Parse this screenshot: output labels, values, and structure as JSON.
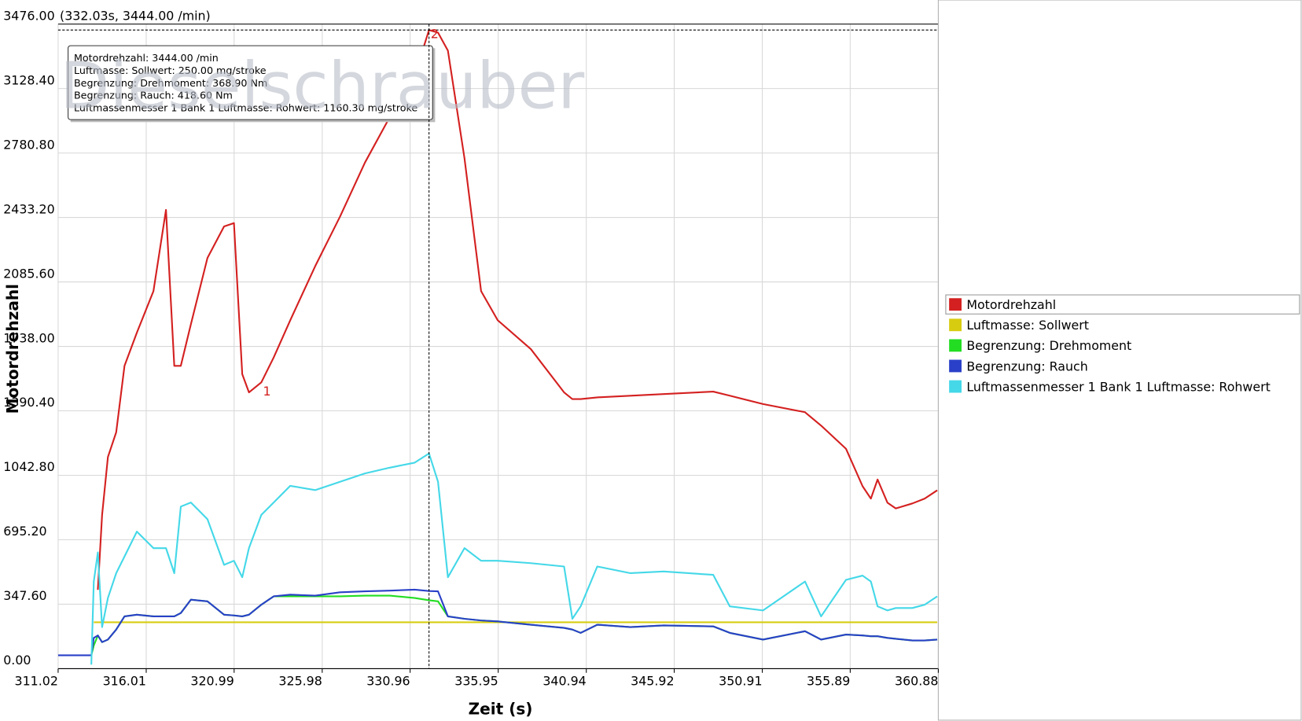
{
  "chart_data": {
    "type": "line",
    "xlabel": "Zeit (s)",
    "ylabel": "Motordrehzahl",
    "watermark": "Dieselschrauber",
    "xlim": [
      311.02,
      360.88
    ],
    "ylim": [
      0,
      3476
    ],
    "xticks": [
      311.02,
      316.01,
      320.99,
      325.98,
      330.96,
      335.95,
      340.94,
      345.92,
      350.91,
      355.89,
      360.88
    ],
    "yticks": [
      {
        "value": 0,
        "label": "0.00"
      },
      {
        "value": 347.6,
        "label": "347.60"
      },
      {
        "value": 695.2,
        "label": "695.20"
      },
      {
        "value": 1042.8,
        "label": "1042.80"
      },
      {
        "value": 1390.4,
        "label": "1390.40"
      },
      {
        "value": 1738,
        "label": "1738.00"
      },
      {
        "value": 2085.6,
        "label": "2085.60"
      },
      {
        "value": 2433.2,
        "label": "2433.20"
      },
      {
        "value": 2780.8,
        "label": "2780.80"
      },
      {
        "value": 3128.4,
        "label": "3128.40"
      },
      {
        "value": 3476,
        "label": "3476.00"
      }
    ],
    "grid": true,
    "legend": "right",
    "cursor": {
      "x": 332.03,
      "y": 3444,
      "readout": "(332.03s, 3444.00 /min)"
    },
    "annotations": [
      {
        "text": "1",
        "x": 322.53,
        "y": 1544
      },
      {
        "text": "2",
        "x": 332.03,
        "y": 3444
      }
    ],
    "tooltip": [
      "Motordrehzahl: 3444.00  /min",
      "Luftmasse: Sollwert: 250.00  mg/stroke",
      "Begrenzung: Drehmoment: 368.90  Nm",
      "Begrenzung: Rauch: 418.60  Nm",
      "Luftmassenmesser 1 Bank 1 Luftmasse: Rohwert: 1160.30  mg/stroke"
    ],
    "x": [
      311.02,
      311.96,
      312.9,
      313.04,
      313.27,
      313.51,
      313.84,
      314.31,
      314.78,
      315.48,
      316.42,
      317.13,
      317.6,
      317.97,
      318.54,
      319.48,
      320.42,
      320.98,
      321.45,
      321.83,
      322.53,
      323.23,
      324.17,
      325.58,
      326.99,
      328.4,
      329.81,
      331.22,
      332.03,
      332.54,
      333.1,
      334.04,
      334.98,
      335.92,
      337.8,
      339.68,
      340.15,
      340.62,
      341.56,
      343.44,
      345.32,
      348.13,
      349.07,
      350.95,
      353.33,
      354.24,
      355.65,
      356.59,
      357.06,
      357.44,
      358.0,
      358.47,
      359.41,
      360.11,
      360.82
    ],
    "series": [
      {
        "name": "Motordrehzahl",
        "color": "#d42020",
        "values": [
          null,
          null,
          null,
          null,
          425,
          828,
          1141,
          1275,
          1633,
          1812,
          2036,
          2474,
          1633,
          1633,
          1857,
          2215,
          2385,
          2403,
          1588,
          1490,
          1544,
          1678,
          1879,
          2170,
          2438,
          2729,
          2975,
          3199,
          3444,
          3430,
          3333,
          2752,
          2036,
          1879,
          1723,
          1490,
          1454,
          1454,
          1463,
          1472,
          1481,
          1494,
          1472,
          1427,
          1383,
          1311,
          1186,
          984,
          917,
          1020,
          895,
          864,
          891,
          917,
          962
        ]
      },
      {
        "name": "Luftmasse: Sollwert",
        "color": "#d8cc10",
        "values": [
          null,
          null,
          null,
          250,
          250,
          250,
          250,
          250,
          250,
          250,
          250,
          250,
          250,
          250,
          250,
          250,
          250,
          250,
          250,
          250,
          250,
          250,
          250,
          250,
          250,
          250,
          250,
          250,
          250,
          250,
          250,
          250,
          250,
          250,
          250,
          250,
          250,
          250,
          250,
          250,
          250,
          250,
          250,
          250,
          250,
          250,
          250,
          250,
          250,
          250,
          250,
          250,
          250,
          250,
          250
        ]
      },
      {
        "name": "Begrenzung: Drehmoment",
        "color": "#22dd22",
        "values": [
          null,
          null,
          72,
          125,
          179,
          143,
          157,
          211,
          282,
          291,
          282,
          282,
          282,
          300,
          372,
          363,
          291,
          287,
          282,
          291,
          345,
          390,
          390,
          390,
          390,
          394,
          394,
          381,
          368.9,
          363,
          282,
          269,
          260,
          255,
          237,
          220,
          211,
          193,
          237,
          224,
          233,
          228,
          193,
          157,
          202,
          157,
          184,
          179,
          175,
          175,
          166,
          161,
          152,
          152,
          157
        ]
      },
      {
        "name": "Begrenzung: Rauch",
        "color": "#2a40c8",
        "values": [
          72,
          72,
          72,
          166,
          179,
          143,
          157,
          211,
          282,
          291,
          282,
          282,
          282,
          300,
          372,
          363,
          291,
          287,
          282,
          291,
          345,
          390,
          399,
          394,
          412,
          417,
          421,
          426,
          418.6,
          417,
          282,
          269,
          260,
          255,
          237,
          220,
          211,
          193,
          237,
          224,
          233,
          228,
          193,
          157,
          202,
          157,
          184,
          179,
          175,
          175,
          166,
          161,
          152,
          152,
          157
        ]
      },
      {
        "name": "Luftmassenmesser 1 Bank 1 Luftmasse: Rohwert",
        "color": "#44d8e8",
        "values": [
          null,
          null,
          22,
          470,
          627,
          224,
          381,
          515,
          605,
          739,
          650,
          650,
          515,
          874,
          896,
          806,
          560,
          582,
          493,
          650,
          829,
          896,
          986,
          963,
          1008,
          1053,
          1084,
          1111,
          1160.3,
          1008,
          493,
          650,
          582,
          582,
          569,
          551,
          269,
          336,
          551,
          515,
          524,
          506,
          336,
          314,
          470,
          282,
          479,
          502,
          470,
          336,
          314,
          327,
          327,
          345,
          390
        ]
      }
    ]
  }
}
